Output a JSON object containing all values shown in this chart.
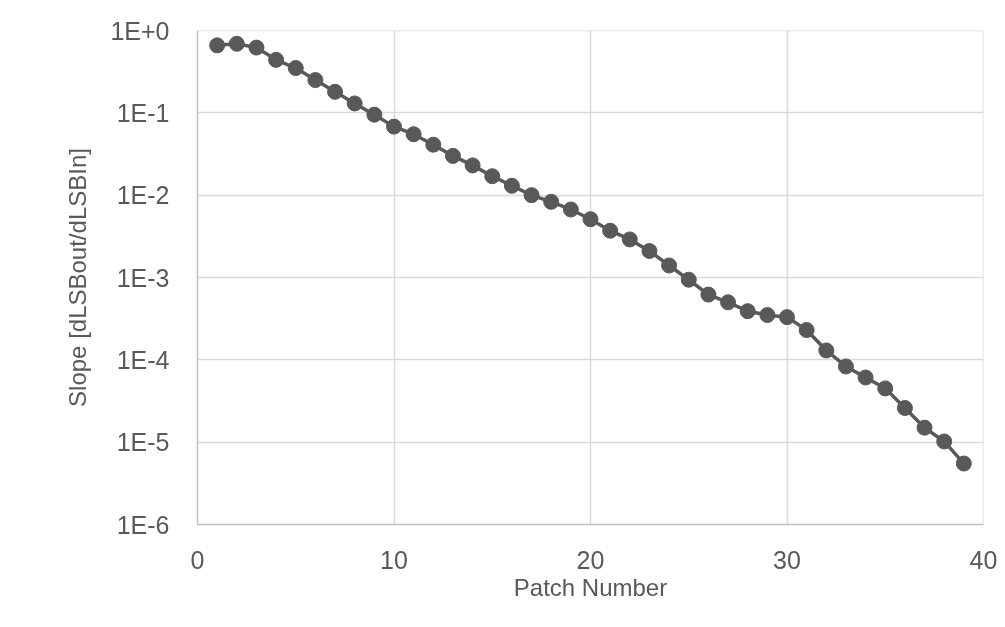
{
  "chart_data": {
    "type": "line",
    "xlabel": "Patch Number",
    "ylabel": "Slope [dLSBout/dLSBIn]",
    "x": [
      1,
      2,
      3,
      4,
      5,
      6,
      7,
      8,
      9,
      10,
      11,
      12,
      13,
      14,
      15,
      16,
      17,
      18,
      19,
      20,
      21,
      22,
      23,
      24,
      25,
      26,
      27,
      28,
      29,
      30,
      31,
      32,
      33,
      34,
      35,
      36,
      37,
      38,
      39
    ],
    "series": [
      {
        "color": "#595959",
        "values": [
          0.66,
          0.69,
          0.62,
          0.44,
          0.35,
          0.25,
          0.18,
          0.13,
          0.095,
          0.068,
          0.055,
          0.041,
          0.03,
          0.023,
          0.017,
          0.013,
          0.01,
          0.0083,
          0.0067,
          0.0051,
          0.0037,
          0.0029,
          0.0021,
          0.0014,
          0.00094,
          0.00062,
          0.0005,
          0.00039,
          0.00035,
          0.00033,
          0.00023,
          0.00013,
          8.3e-05,
          6.1e-05,
          4.5e-05,
          2.6e-05,
          1.5e-05,
          1.02e-05,
          5.5e-06
        ]
      }
    ],
    "xlim": [
      0,
      40
    ],
    "xticks": [
      0,
      10,
      20,
      30,
      40
    ],
    "ylim": [
      1e-06,
      1
    ],
    "yticks": [
      {
        "value": 1,
        "label": "1E+0"
      },
      {
        "value": 0.1,
        "label": "1E-1"
      },
      {
        "value": 0.01,
        "label": "1E-2"
      },
      {
        "value": 0.001,
        "label": "1E-3"
      },
      {
        "value": 0.0001,
        "label": "1E-4"
      },
      {
        "value": 1e-05,
        "label": "1E-5"
      },
      {
        "value": 1e-06,
        "label": "1E-6"
      }
    ],
    "log": "y",
    "grid": true,
    "marker": "circle",
    "line_style": "solid"
  }
}
